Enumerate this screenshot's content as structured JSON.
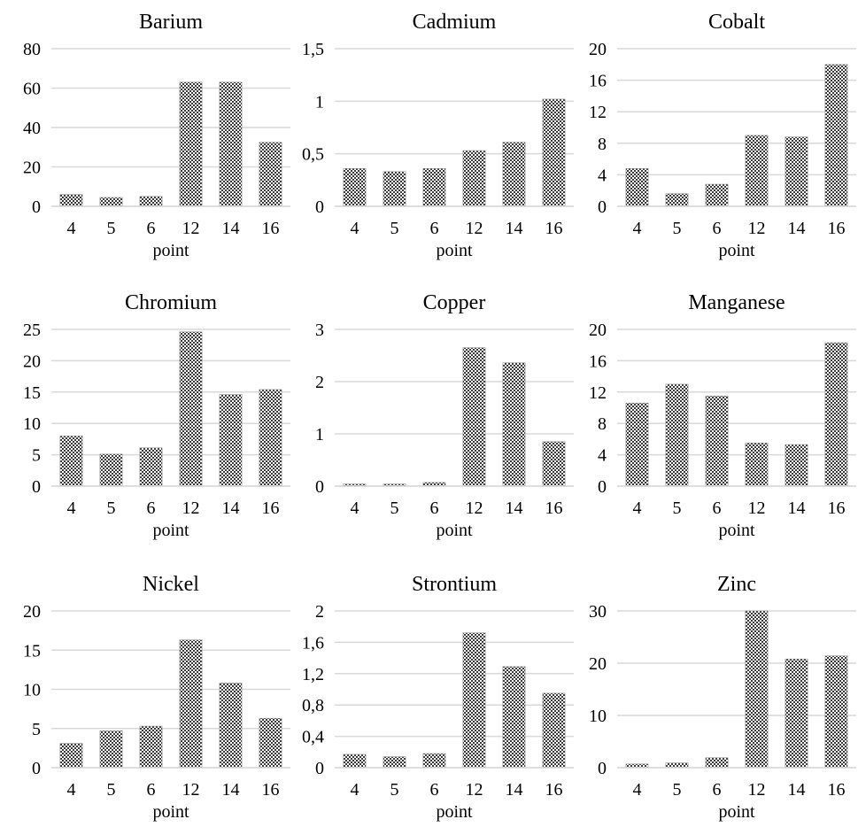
{
  "chart_data": [
    {
      "type": "bar",
      "title": "Barium",
      "xlabel": "point",
      "categories": [
        "4",
        "5",
        "6",
        "12",
        "14",
        "16"
      ],
      "values": [
        6,
        4.5,
        5,
        63,
        63,
        32.5
      ],
      "ylim": [
        0,
        80
      ],
      "yticks": [
        "0",
        "20",
        "40",
        "60",
        "80"
      ]
    },
    {
      "type": "bar",
      "title": "Cadmium",
      "xlabel": "point",
      "categories": [
        "4",
        "5",
        "6",
        "12",
        "14",
        "16"
      ],
      "values": [
        0.36,
        0.33,
        0.36,
        0.53,
        0.61,
        1.02
      ],
      "ylim": [
        0,
        1.5
      ],
      "yticks": [
        "0",
        "0,5",
        "1",
        "1,5"
      ]
    },
    {
      "type": "bar",
      "title": "Cobalt",
      "xlabel": "point",
      "categories": [
        "4",
        "5",
        "6",
        "12",
        "14",
        "16"
      ],
      "values": [
        4.8,
        1.6,
        2.8,
        9,
        8.8,
        18
      ],
      "ylim": [
        0,
        20
      ],
      "yticks": [
        "0",
        "4",
        "8",
        "12",
        "16",
        "20"
      ]
    },
    {
      "type": "bar",
      "title": "Chromium",
      "xlabel": "point",
      "categories": [
        "4",
        "5",
        "6",
        "12",
        "14",
        "16"
      ],
      "values": [
        8,
        5.1,
        6.1,
        24.6,
        14.6,
        15.4
      ],
      "ylim": [
        0,
        25
      ],
      "yticks": [
        "0",
        "5",
        "10",
        "15",
        "20",
        "25"
      ]
    },
    {
      "type": "bar",
      "title": "Copper",
      "xlabel": "point",
      "categories": [
        "4",
        "5",
        "6",
        "12",
        "14",
        "16"
      ],
      "values": [
        0.04,
        0.04,
        0.07,
        2.65,
        2.36,
        0.85
      ],
      "ylim": [
        0,
        3
      ],
      "yticks": [
        "0",
        "1",
        "2",
        "3"
      ]
    },
    {
      "type": "bar",
      "title": "Manganese",
      "xlabel": "point",
      "categories": [
        "4",
        "5",
        "6",
        "12",
        "14",
        "16"
      ],
      "values": [
        10.6,
        13,
        11.5,
        5.5,
        5.3,
        18.3
      ],
      "ylim": [
        0,
        20
      ],
      "yticks": [
        "0",
        "4",
        "8",
        "12",
        "16",
        "20"
      ]
    },
    {
      "type": "bar",
      "title": "Nickel",
      "xlabel": "point",
      "categories": [
        "4",
        "5",
        "6",
        "12",
        "14",
        "16"
      ],
      "values": [
        3.1,
        4.7,
        5.3,
        16.3,
        10.8,
        6.3
      ],
      "ylim": [
        0,
        20
      ],
      "yticks": [
        "0",
        "5",
        "10",
        "15",
        "20"
      ]
    },
    {
      "type": "bar",
      "title": "Strontium",
      "xlabel": "point",
      "categories": [
        "4",
        "5",
        "6",
        "12",
        "14",
        "16"
      ],
      "values": [
        0.17,
        0.14,
        0.18,
        1.72,
        1.29,
        0.95
      ],
      "ylim": [
        0,
        2
      ],
      "yticks": [
        "0",
        "0,4",
        "0,8",
        "1,2",
        "1,6",
        "2"
      ]
    },
    {
      "type": "bar",
      "title": "Zinc",
      "xlabel": "point",
      "categories": [
        "4",
        "5",
        "6",
        "12",
        "14",
        "16"
      ],
      "values": [
        0.7,
        0.9,
        1.9,
        30,
        20.8,
        21.4
      ],
      "ylim": [
        0,
        30
      ],
      "yticks": [
        "0",
        "10",
        "20",
        "30"
      ]
    }
  ]
}
